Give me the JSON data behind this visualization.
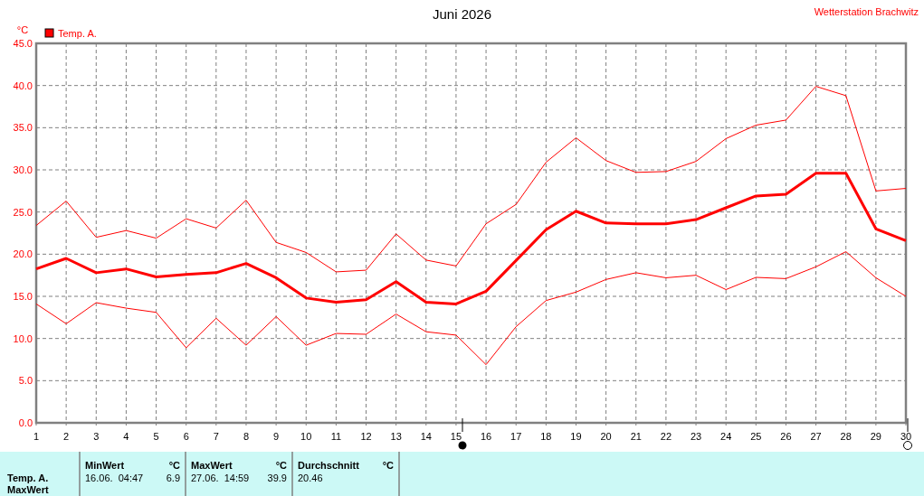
{
  "chart_data": {
    "type": "line",
    "title": "Juni 2026",
    "ylabel": "°C",
    "x": [
      1,
      2,
      3,
      4,
      5,
      6,
      7,
      8,
      9,
      10,
      11,
      12,
      13,
      14,
      15,
      16,
      17,
      18,
      19,
      20,
      21,
      22,
      23,
      24,
      25,
      26,
      27,
      28,
      29,
      30
    ],
    "series": [
      {
        "color": "#ff0000",
        "values": [
          23.4,
          26.3,
          22.0,
          22.8,
          21.9,
          24.2,
          23.1,
          26.4,
          21.4,
          20.2,
          17.9,
          18.1,
          22.4,
          19.3,
          18.6,
          23.6,
          25.9,
          30.9,
          33.8,
          31.1,
          29.7,
          29.8,
          31.0,
          33.7,
          35.3,
          35.9,
          39.9,
          38.8,
          27.5,
          27.8
        ]
      },
      {
        "name": "Temp. A.",
        "color": "#ff0000",
        "values": [
          18.25,
          19.5,
          17.8,
          18.25,
          17.3,
          17.6,
          17.8,
          18.9,
          17.2,
          14.8,
          14.3,
          14.6,
          16.75,
          14.3,
          14.1,
          15.6,
          19.25,
          22.9,
          25.1,
          23.7,
          23.6,
          23.6,
          24.1,
          25.5,
          26.9,
          27.1,
          29.6,
          29.6,
          23.0,
          21.6
        ]
      },
      {
        "color": "#ff0000",
        "values": [
          14.1,
          11.75,
          14.25,
          13.6,
          13.1,
          8.9,
          12.4,
          9.2,
          12.6,
          9.2,
          10.6,
          10.5,
          12.9,
          10.8,
          10.4,
          6.9,
          11.4,
          14.5,
          15.5,
          17.0,
          17.8,
          17.2,
          17.5,
          15.8,
          17.25,
          17.1,
          18.5,
          20.3,
          17.2,
          15.0
        ]
      }
    ],
    "xlim": [
      1,
      30
    ],
    "xticks": [
      1,
      2,
      3,
      4,
      5,
      6,
      7,
      8,
      9,
      10,
      11,
      12,
      13,
      14,
      15,
      16,
      17,
      18,
      19,
      20,
      21,
      22,
      23,
      24,
      25,
      26,
      27,
      28,
      29,
      30
    ],
    "ylim": [
      0,
      45
    ],
    "yticks": [
      {
        "value": 0,
        "label": "0.0"
      },
      {
        "value": 5,
        "label": "5.0"
      },
      {
        "value": 10,
        "label": "10.0"
      },
      {
        "value": 15,
        "label": "15.0"
      },
      {
        "value": 20,
        "label": "20.0"
      },
      {
        "value": 25,
        "label": "25.0"
      },
      {
        "value": 30,
        "label": "30.0"
      },
      {
        "value": 35,
        "label": "35.0"
      },
      {
        "value": 40,
        "label": "40.0"
      },
      {
        "value": 45,
        "label": "45.0"
      }
    ],
    "grid": true,
    "legend": "top left",
    "marker": "none",
    "line_style": "solid",
    "annotations": [
      "Wetterstation Brachwitz",
      "Temp. A.",
      "MaxWert",
      "MinWert",
      "°C",
      "16.06.  04:47",
      "6.9",
      "MaxWert",
      "°C",
      "27.06.  14:59",
      "39.9",
      "Durchschnitt",
      "°C",
      "20.46"
    ]
  }
}
